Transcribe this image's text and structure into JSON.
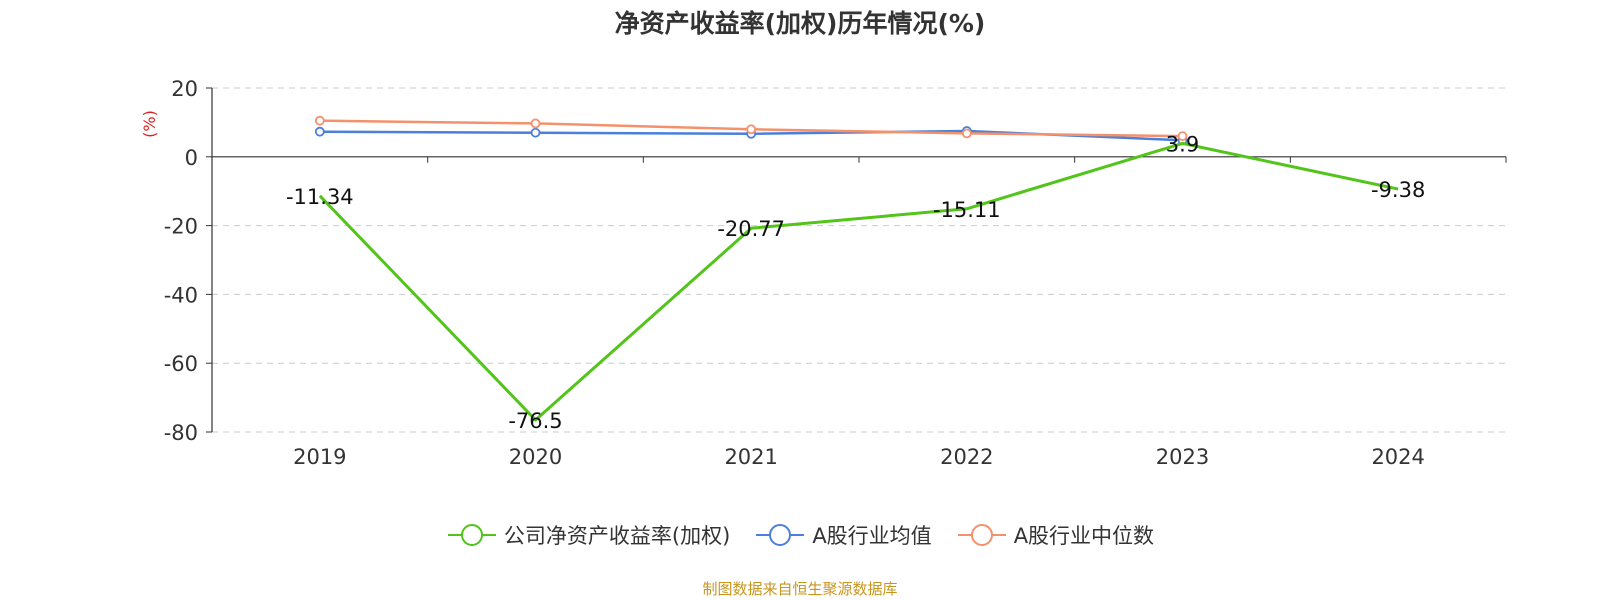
{
  "chart_data": {
    "type": "line",
    "title": "净资产收益率(加权)历年情况(%)",
    "ylabel": "(%)",
    "categories": [
      "2019",
      "2020",
      "2021",
      "2022",
      "2023",
      "2024"
    ],
    "ylim": [
      -80,
      20
    ],
    "yticks": [
      20,
      0,
      -20,
      -40,
      -60,
      -80
    ],
    "grid": true,
    "legend_position": "bottom",
    "series": [
      {
        "name": "公司净资产收益率(加权)",
        "color": "#52c41a",
        "values": [
          -11.34,
          -76.5,
          -20.77,
          -15.11,
          3.9,
          -9.38
        ],
        "labels": [
          "-11.34",
          "-76.5",
          "-20.77",
          "-15.11",
          "3.9",
          "-9.38"
        ]
      },
      {
        "name": "A股行业均值",
        "color": "#4a7fdc",
        "values": [
          7.3,
          7.0,
          6.7,
          7.5,
          4.8,
          null
        ]
      },
      {
        "name": "A股行业中位数",
        "color": "#f4916b",
        "values": [
          10.5,
          9.7,
          8.0,
          6.8,
          6.0,
          null
        ]
      }
    ]
  },
  "source": "制图数据来自恒生聚源数据库"
}
